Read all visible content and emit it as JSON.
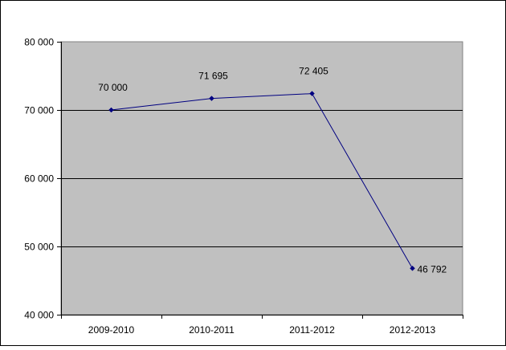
{
  "chart_data": {
    "type": "line",
    "title": "",
    "xlabel": "",
    "ylabel": "",
    "categories": [
      "2009-2010",
      "2010-2011",
      "2011-2012",
      "2012-2013"
    ],
    "series": [
      {
        "values": [
          70000,
          71695,
          72405,
          46792
        ],
        "data_labels": [
          "70 000",
          "71 695",
          "72 405",
          "46 792"
        ]
      }
    ],
    "ylim": [
      40000,
      80000
    ],
    "y_ticks": [
      40000,
      50000,
      60000,
      70000,
      80000
    ],
    "y_tick_labels": [
      "40 000",
      "50 000",
      "60 000",
      "70 000",
      "80 000"
    ],
    "grid": true,
    "legend": "none",
    "colors": {
      "plot_background": "#c0c0c0",
      "line": "#000080",
      "gridline": "#000000",
      "frame_border": "#000000"
    }
  }
}
